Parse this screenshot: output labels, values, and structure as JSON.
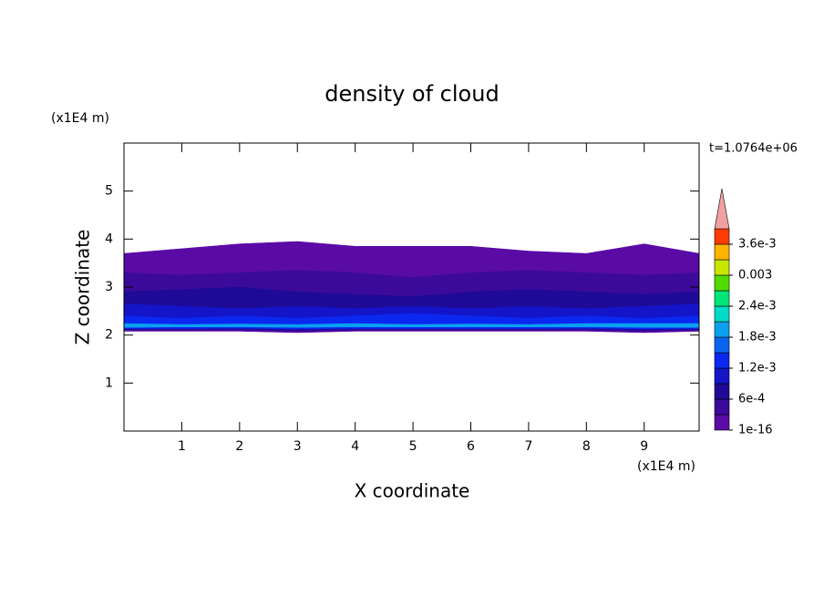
{
  "chart_data": {
    "type": "contour",
    "title": "density of cloud",
    "xlabel": "X coordinate",
    "ylabel": "Z coordinate",
    "x_unit": "(x1E4 m)",
    "y_unit": "(x1E4 m)",
    "annotation": "t=1.0764e+06",
    "xlim": [
      0,
      9.95
    ],
    "ylim": [
      0,
      6
    ],
    "xticks": [
      1,
      2,
      3,
      4,
      5,
      6,
      7,
      8,
      9
    ],
    "yticks": [
      1,
      2,
      3,
      4,
      5
    ],
    "x": [
      0,
      1,
      2,
      3,
      4,
      5,
      6,
      7,
      8,
      9,
      9.95
    ],
    "layers": [
      {
        "level": 1e-16,
        "top": [
          3.7,
          3.8,
          3.9,
          3.95,
          3.85,
          3.85,
          3.85,
          3.75,
          3.7,
          3.9,
          3.7
        ],
        "bottom": [
          2.08,
          2.08,
          2.08,
          2.05,
          2.08,
          2.08,
          2.08,
          2.08,
          2.08,
          2.05,
          2.08
        ]
      },
      {
        "level": 0.0003,
        "top": [
          3.3,
          3.25,
          3.3,
          3.35,
          3.3,
          3.2,
          3.3,
          3.35,
          3.3,
          3.25,
          3.3
        ],
        "bottom": [
          2.1,
          2.1,
          2.1,
          2.08,
          2.1,
          2.1,
          2.1,
          2.1,
          2.1,
          2.08,
          2.1
        ]
      },
      {
        "level": 0.0006,
        "top": [
          2.9,
          2.95,
          3.0,
          2.9,
          2.85,
          2.8,
          2.9,
          2.95,
          2.9,
          2.85,
          2.9
        ],
        "bottom": [
          2.12,
          2.12,
          2.12,
          2.1,
          2.12,
          2.12,
          2.12,
          2.12,
          2.12,
          2.1,
          2.12
        ]
      },
      {
        "level": 0.0009,
        "top": [
          2.65,
          2.6,
          2.55,
          2.6,
          2.55,
          2.6,
          2.55,
          2.6,
          2.55,
          2.6,
          2.65
        ],
        "bottom": [
          2.13,
          2.13,
          2.13,
          2.12,
          2.13,
          2.13,
          2.13,
          2.13,
          2.13,
          2.12,
          2.13
        ]
      },
      {
        "level": 0.0012,
        "top": [
          2.4,
          2.35,
          2.4,
          2.35,
          2.4,
          2.45,
          2.4,
          2.35,
          2.4,
          2.35,
          2.4
        ],
        "bottom": [
          2.14,
          2.14,
          2.15,
          2.13,
          2.14,
          2.14,
          2.14,
          2.14,
          2.15,
          2.13,
          2.14
        ]
      },
      {
        "level": 0.0018,
        "top": [
          2.24,
          2.22,
          2.23,
          2.22,
          2.24,
          2.22,
          2.23,
          2.22,
          2.24,
          2.24,
          2.24
        ],
        "bottom": [
          2.16,
          2.17,
          2.17,
          2.16,
          2.17,
          2.17,
          2.17,
          2.17,
          2.17,
          2.16,
          2.16
        ]
      }
    ],
    "levels": [
      1e-16,
      0.0003,
      0.0006,
      0.0009,
      0.0012,
      0.0015,
      0.0018,
      0.0021,
      0.0024,
      0.0027,
      0.003,
      0.0033,
      0.0036,
      0.0039
    ],
    "colors": [
      "#5a0aa5",
      "#3c0a9b",
      "#1e0a96",
      "#1414c8",
      "#0a28f0",
      "#0a64f0",
      "#0aa0f0",
      "#00dcc8",
      "#00e678",
      "#50dc00",
      "#c8e600",
      "#ffb400",
      "#ff3c00"
    ],
    "over_color": "#f0a0a0",
    "colorbar_ticks": [
      {
        "value": 1e-16,
        "label": "1e-16"
      },
      {
        "value": 0.0006,
        "label": "6e-4"
      },
      {
        "value": 0.0012,
        "label": "1.2e-3"
      },
      {
        "value": 0.0018,
        "label": "1.8e-3"
      },
      {
        "value": 0.0024,
        "label": "2.4e-3"
      },
      0.003,
      {
        "value": 0.0036,
        "label": "3.6e-3"
      }
    ]
  }
}
